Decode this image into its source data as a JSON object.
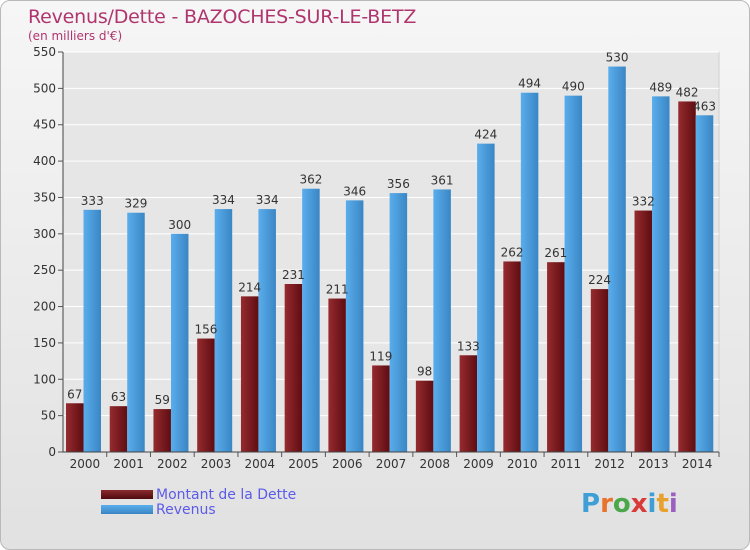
{
  "header": {
    "title": "Revenus/Dette - BAZOCHES-SUR-LE-BETZ",
    "subtitle": "(en milliers d'€)"
  },
  "colors": {
    "dette": "#6e1518",
    "revenus": "#4a9ad8",
    "label": "#333333",
    "grid": "#ffffff",
    "title": "#b0356e",
    "legend_text": "#5b5be8"
  },
  "chart_data": {
    "type": "bar",
    "title": "Revenus/Dette - BAZOCHES-SUR-LE-BETZ",
    "subtitle": "(en milliers d'€)",
    "categories": [
      "2000",
      "2001",
      "2002",
      "2003",
      "2004",
      "2005",
      "2006",
      "2007",
      "2008",
      "2009",
      "2010",
      "2011",
      "2012",
      "2013",
      "2014"
    ],
    "series": [
      {
        "name": "Montant de la Dette",
        "values": [
          67,
          63,
          59,
          156,
          214,
          231,
          211,
          119,
          98,
          133,
          262,
          261,
          224,
          332,
          482
        ]
      },
      {
        "name": "Revenus",
        "values": [
          333,
          329,
          300,
          334,
          334,
          362,
          346,
          356,
          361,
          424,
          494,
          490,
          530,
          489,
          463
        ]
      }
    ],
    "ylim": [
      0,
      550
    ],
    "yticks": [
      0,
      50,
      100,
      150,
      200,
      250,
      300,
      350,
      400,
      450,
      500,
      550
    ],
    "grid": true,
    "legend_position": "bottom-left"
  },
  "legend": {
    "items": [
      {
        "label": "Montant de la Dette"
      },
      {
        "label": "Revenus"
      }
    ]
  },
  "logo": {
    "letters": [
      {
        "ch": "P",
        "color": "#3d9fd6"
      },
      {
        "ch": "r",
        "color": "#e7732c"
      },
      {
        "ch": "o",
        "color": "#4aa84a"
      },
      {
        "ch": "x",
        "color": "#d93a3a"
      },
      {
        "ch": "i",
        "color": "#3d9fd6"
      },
      {
        "ch": "t",
        "color": "#e7a12c"
      },
      {
        "ch": "i",
        "color": "#9b5fc0"
      }
    ]
  }
}
